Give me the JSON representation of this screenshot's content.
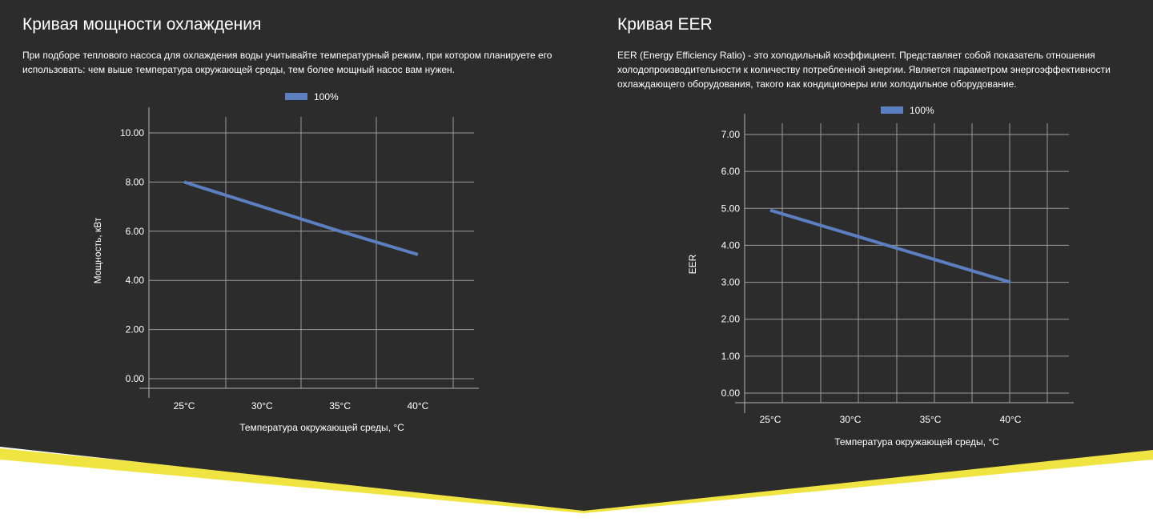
{
  "page": {
    "background": "#2d2c2c",
    "accent": "#f0e442",
    "line_color": "#5b7fc0"
  },
  "left": {
    "title": "Кривая мощности охлаждения",
    "description": "При подборе теплового насоса для охлаждения воды учитывайте температурный режим, при котором планируете его использовать: чем выше температура окружающей среды, тем более мощный насос вам нужен."
  },
  "right": {
    "title": "Кривая EER",
    "description": "EER (Energy Efficiency Ratio) - это холодильный коэффициент. Представляет собой показатель отношения холодопроизводительности к количеству потребленной энергии. Является параметром энергоэффективности охлаждающего оборудования, такого как кондиционеры или холодильное оборудование."
  },
  "chart_data": [
    {
      "type": "line",
      "categories": [
        "25°C",
        "30°C",
        "35°C",
        "40°C"
      ],
      "series": [
        {
          "name": "100%",
          "values": [
            8.0,
            7.0,
            6.0,
            5.05
          ],
          "color": "#5b7fc0"
        }
      ],
      "xlabel": "Температура окружающей среды, °С",
      "ylabel": "Мощность, кВт",
      "yticks": [
        "0.00",
        "2.00",
        "4.00",
        "6.00",
        "8.00",
        "10.00"
      ],
      "ylim": [
        0,
        10
      ],
      "grid": true,
      "legend": "top-center"
    },
    {
      "type": "line",
      "categories": [
        "25°C",
        "30°C",
        "35°C",
        "40°C"
      ],
      "series": [
        {
          "name": "100%",
          "values": [
            4.95,
            4.3,
            3.65,
            3.0
          ],
          "color": "#5b7fc0"
        }
      ],
      "xlabel": "Температура окружающей среды, °С",
      "ylabel": "EER",
      "yticks": [
        "0.00",
        "1.00",
        "2.00",
        "3.00",
        "4.00",
        "5.00",
        "6.00",
        "7.00"
      ],
      "ylim": [
        0,
        7
      ],
      "grid": true,
      "legend": "top-center"
    }
  ]
}
